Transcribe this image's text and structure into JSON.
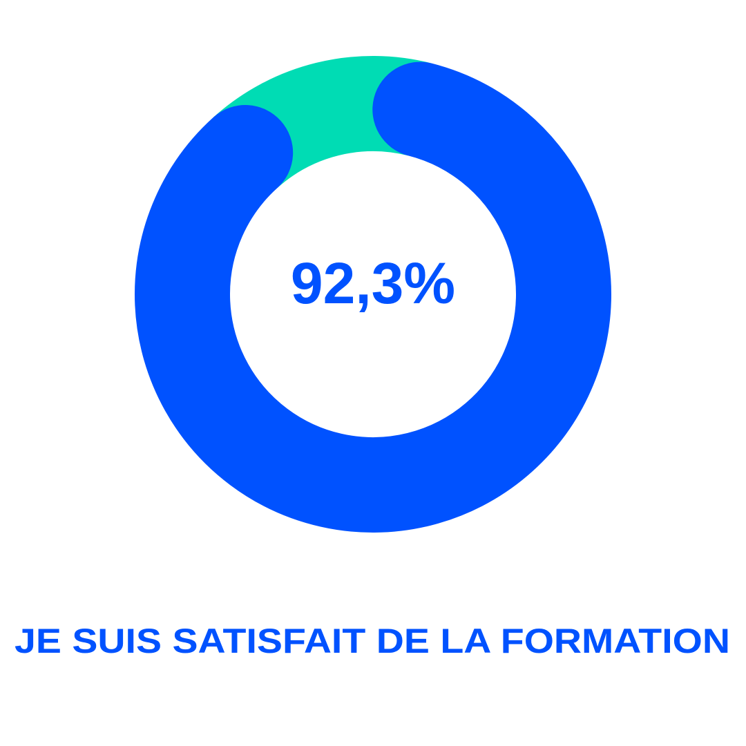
{
  "chart_data": {
    "type": "donut",
    "title": "JE SUIS SATISFAIT DE LA FORMATION",
    "values": [
      92.3,
      7.7
    ],
    "value_labels": [
      "92,3%",
      null
    ],
    "colors": [
      "#0052ff",
      "#00dcb4"
    ]
  }
}
